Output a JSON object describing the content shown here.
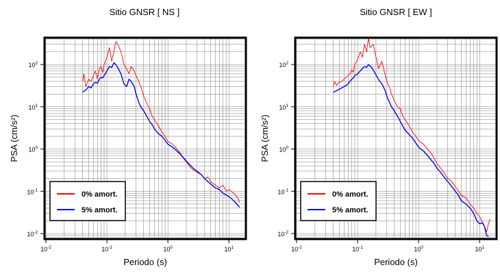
{
  "chart_data": [
    {
      "type": "line",
      "title": "Sitio GNSR [ NS ]",
      "xlabel": "Periodo (s)",
      "ylabel": "PSA (cm/s²)",
      "xscale": "log",
      "yscale": "log",
      "xlim": [
        0.01,
        18
      ],
      "ylim": [
        0.008,
        400
      ],
      "x_ticks": [
        0.01,
        0.1,
        1,
        10
      ],
      "y_ticks": [
        0.01,
        0.1,
        1,
        10,
        100
      ],
      "grid": true,
      "legend_position": "bottom-left",
      "series": [
        {
          "name": "0% amort.",
          "color": "#ff0000",
          "x": [
            0.04,
            0.042,
            0.045,
            0.05,
            0.055,
            0.06,
            0.065,
            0.07,
            0.075,
            0.08,
            0.085,
            0.09,
            0.095,
            0.1,
            0.11,
            0.12,
            0.13,
            0.14,
            0.15,
            0.17,
            0.19,
            0.21,
            0.23,
            0.25,
            0.28,
            0.3,
            0.33,
            0.36,
            0.4,
            0.45,
            0.5,
            0.55,
            0.6,
            0.7,
            0.8,
            0.9,
            1.0,
            1.2,
            1.4,
            1.6,
            1.8,
            2.0,
            2.3,
            2.6,
            3.0,
            3.5,
            4.0,
            4.5,
            5.0,
            6.0,
            7.0,
            8.0,
            9.0,
            10.0,
            12.0,
            14.0,
            15.0
          ],
          "y": [
            40,
            60,
            30,
            45,
            40,
            55,
            70,
            45,
            80,
            90,
            65,
            100,
            120,
            150,
            250,
            120,
            200,
            350,
            300,
            200,
            100,
            80,
            60,
            90,
            70,
            55,
            40,
            30,
            18,
            12,
            9,
            6,
            5,
            3.5,
            2.5,
            2.0,
            1.5,
            1.3,
            1.0,
            0.8,
            0.6,
            0.5,
            0.38,
            0.32,
            0.28,
            0.25,
            0.2,
            0.22,
            0.17,
            0.14,
            0.12,
            0.14,
            0.1,
            0.11,
            0.09,
            0.07,
            0.055
          ]
        },
        {
          "name": "5% amort.",
          "color": "#0000ff",
          "x": [
            0.04,
            0.045,
            0.05,
            0.055,
            0.06,
            0.065,
            0.07,
            0.075,
            0.08,
            0.085,
            0.09,
            0.1,
            0.11,
            0.12,
            0.13,
            0.14,
            0.15,
            0.17,
            0.19,
            0.21,
            0.23,
            0.25,
            0.28,
            0.3,
            0.33,
            0.36,
            0.4,
            0.45,
            0.5,
            0.55,
            0.6,
            0.7,
            0.8,
            0.9,
            1.0,
            1.2,
            1.4,
            1.6,
            1.8,
            2.0,
            2.3,
            2.6,
            3.0,
            3.5,
            4.0,
            4.5,
            5.0,
            6.0,
            7.0,
            8.0,
            10.0,
            12.0,
            15.0
          ],
          "y": [
            22,
            25,
            30,
            28,
            35,
            38,
            36,
            45,
            50,
            48,
            55,
            70,
            90,
            85,
            110,
            100,
            85,
            60,
            35,
            30,
            45,
            40,
            30,
            20,
            13,
            10,
            8,
            6,
            4.5,
            3.8,
            3.0,
            2.3,
            2.0,
            1.6,
            1.3,
            1.1,
            0.9,
            0.75,
            0.62,
            0.52,
            0.42,
            0.35,
            0.3,
            0.25,
            0.2,
            0.17,
            0.15,
            0.12,
            0.11,
            0.09,
            0.075,
            0.06,
            0.042
          ]
        }
      ]
    },
    {
      "type": "line",
      "title": "Sitio GNSR [ EW ]",
      "xlabel": "Periodo (s)",
      "ylabel": "PSA (cm/s²)",
      "xscale": "log",
      "yscale": "log",
      "xlim": [
        0.01,
        18
      ],
      "ylim": [
        0.008,
        400
      ],
      "x_ticks": [
        0.01,
        0.1,
        1,
        10
      ],
      "y_ticks": [
        0.01,
        0.1,
        1,
        10,
        100
      ],
      "grid": true,
      "legend_position": "bottom-left",
      "series": [
        {
          "name": "0% amort.",
          "color": "#ff0000",
          "x": [
            0.04,
            0.042,
            0.045,
            0.05,
            0.055,
            0.06,
            0.065,
            0.07,
            0.075,
            0.08,
            0.085,
            0.09,
            0.1,
            0.11,
            0.12,
            0.13,
            0.14,
            0.15,
            0.16,
            0.18,
            0.2,
            0.22,
            0.25,
            0.28,
            0.3,
            0.33,
            0.36,
            0.4,
            0.45,
            0.5,
            0.55,
            0.6,
            0.7,
            0.8,
            0.9,
            1.0,
            1.2,
            1.4,
            1.6,
            1.8,
            2.0,
            2.3,
            2.6,
            3.0,
            3.5,
            4.0,
            4.5,
            5.0,
            6.0,
            7.0,
            8.0,
            9.0,
            10.0,
            12.0,
            13.0,
            14.0,
            15.0
          ],
          "y": [
            30,
            40,
            32,
            38,
            40,
            45,
            50,
            55,
            60,
            75,
            65,
            100,
            130,
            200,
            150,
            300,
            200,
            420,
            250,
            300,
            150,
            80,
            120,
            60,
            40,
            30,
            20,
            14,
            10,
            9,
            6,
            5,
            3.5,
            2.5,
            2.0,
            1.6,
            1.3,
            1.0,
            0.8,
            0.6,
            0.45,
            0.35,
            0.28,
            0.2,
            0.17,
            0.13,
            0.1,
            0.08,
            0.07,
            0.05,
            0.04,
            0.03,
            0.025,
            0.015,
            0.011,
            0.018,
            0.022
          ]
        },
        {
          "name": "5% amort.",
          "color": "#0000ff",
          "x": [
            0.04,
            0.045,
            0.05,
            0.055,
            0.06,
            0.065,
            0.07,
            0.075,
            0.08,
            0.085,
            0.09,
            0.1,
            0.11,
            0.12,
            0.13,
            0.14,
            0.15,
            0.17,
            0.19,
            0.21,
            0.23,
            0.25,
            0.28,
            0.3,
            0.33,
            0.36,
            0.4,
            0.45,
            0.5,
            0.55,
            0.6,
            0.7,
            0.8,
            0.9,
            1.0,
            1.2,
            1.4,
            1.6,
            1.8,
            2.0,
            2.3,
            2.6,
            3.0,
            3.5,
            4.0,
            4.5,
            5.0,
            6.0,
            7.0,
            8.0,
            9.0,
            10.0,
            11.0,
            12.0,
            13.0,
            14.0
          ],
          "y": [
            22,
            24,
            26,
            28,
            30,
            32,
            35,
            40,
            45,
            48,
            55,
            60,
            70,
            80,
            90,
            85,
            100,
            85,
            65,
            50,
            40,
            35,
            25,
            18,
            13,
            10,
            8,
            6,
            4.5,
            3.5,
            2.8,
            2.2,
            1.8,
            1.4,
            1.1,
            0.9,
            0.7,
            0.55,
            0.45,
            0.35,
            0.28,
            0.22,
            0.17,
            0.13,
            0.1,
            0.08,
            0.06,
            0.05,
            0.04,
            0.03,
            0.02,
            0.017,
            0.018,
            0.015,
            0.009,
            0.0085
          ]
        }
      ]
    }
  ]
}
